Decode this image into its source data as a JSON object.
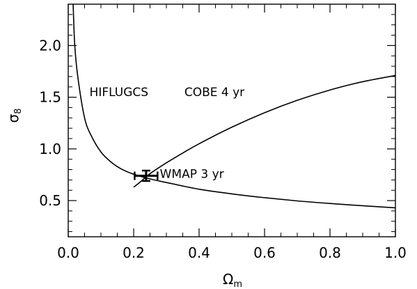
{
  "chart_data": {
    "type": "line",
    "title": "",
    "xlabel": "Ω",
    "xlabel_sub": "m",
    "ylabel": "σ",
    "ylabel_sub": "8",
    "xlim": [
      0.0,
      1.0
    ],
    "ylim": [
      0.15,
      2.4
    ],
    "grid": false,
    "x_ticks": [
      0.0,
      0.2,
      0.4,
      0.6,
      0.8,
      1.0
    ],
    "x_tick_labels": [
      "0.0",
      "0.2",
      "0.4",
      "0.6",
      "0.8",
      "1.0"
    ],
    "y_ticks": [
      0.5,
      1.0,
      1.5,
      2.0
    ],
    "y_tick_labels": [
      "0.5",
      "1.0",
      "1.5",
      "2.0"
    ],
    "series": [
      {
        "name": "HIFLUGCS",
        "x": [
          0.015,
          0.02,
          0.03,
          0.05,
          0.07,
          0.1,
          0.13,
          0.16,
          0.2,
          0.25,
          0.3,
          0.4,
          0.5,
          0.6,
          0.7,
          0.8,
          0.9,
          1.0
        ],
        "y": [
          2.4,
          2.0,
          1.68,
          1.3,
          1.13,
          0.97,
          0.875,
          0.81,
          0.755,
          0.71,
          0.675,
          0.61,
          0.565,
          0.528,
          0.497,
          0.472,
          0.45,
          0.43
        ]
      },
      {
        "name": "COBE 4 yr",
        "x": [
          0.2,
          0.22,
          0.25,
          0.3,
          0.35,
          0.4,
          0.5,
          0.6,
          0.7,
          0.8,
          0.9,
          1.0
        ],
        "y": [
          0.63,
          0.68,
          0.76,
          0.865,
          0.96,
          1.05,
          1.21,
          1.35,
          1.47,
          1.57,
          1.65,
          1.71
        ]
      }
    ],
    "points": [
      {
        "name": "WMAP 3 yr",
        "x": 0.238,
        "y": 0.74,
        "xerr": 0.035,
        "yerr": 0.05
      }
    ],
    "annotations": [
      {
        "text": "HIFLUGCS",
        "x": 0.065,
        "y": 1.55
      },
      {
        "text": "COBE 4 yr",
        "x": 0.355,
        "y": 1.55
      },
      {
        "text": "WMAP 3 yr",
        "x": 0.28,
        "y": 0.76
      }
    ]
  }
}
